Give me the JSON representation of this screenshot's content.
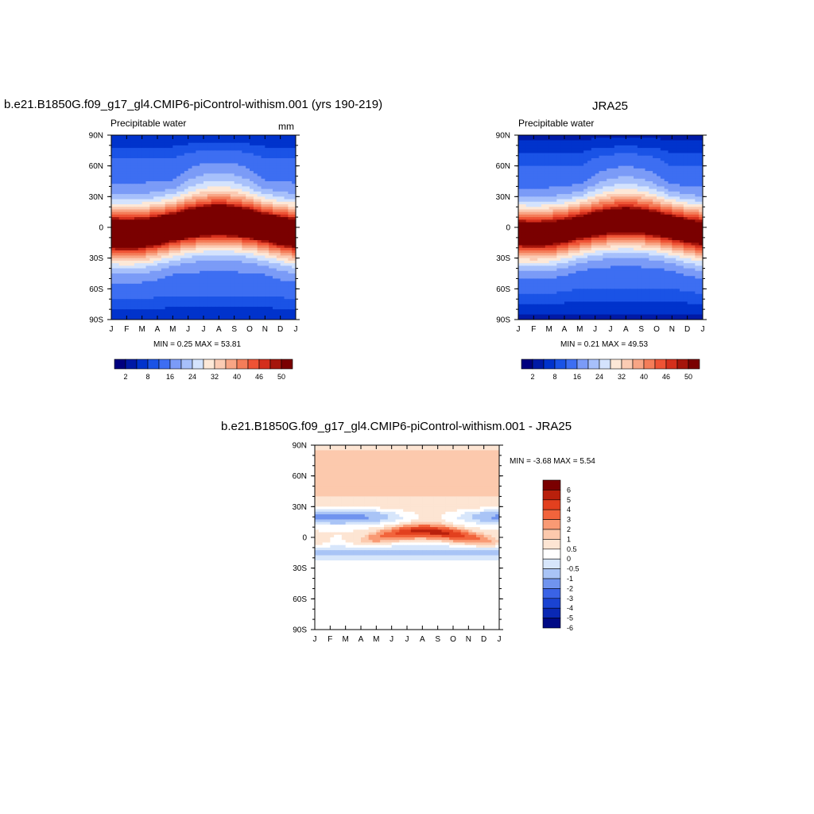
{
  "figure": {
    "panels": [
      {
        "title": "b.e21.B1850G.f09_g17_gl4.CMIP6-piControl-withism.001 (yrs 190-219)",
        "left_label": "Precipitable water",
        "right_label": "mm",
        "stats": "MIN =   0.25 MAX =  53.81"
      },
      {
        "title": "JRA25",
        "left_label": "Precipitable water",
        "right_label": "",
        "stats": "MIN =   0.21 MAX =  49.53"
      },
      {
        "title": "b.e21.B1850G.f09_g17_gl4.CMIP6-piControl-withism.001 - JRA25",
        "left_label": "",
        "right_label": "",
        "stats": "MIN =  -3.68 MAX =   5.54"
      }
    ],
    "month_ticks": [
      "J",
      "F",
      "M",
      "A",
      "M",
      "J",
      "J",
      "A",
      "S",
      "O",
      "N",
      "D",
      "J"
    ],
    "lat_ticks": [
      "90N",
      "60N",
      "30N",
      "0",
      "30S",
      "60S",
      "90S"
    ]
  },
  "chart_data": [
    {
      "type": "heatmap",
      "title": "b.e21.B1850G.f09_g17_gl4.CMIP6-piControl-withism.001 (yrs 190-219)",
      "subtitle": "Precipitable water",
      "units": "mm",
      "x": "month (Jan to Jan)",
      "y": "latitude",
      "ylim": [
        -90,
        90
      ],
      "min": 0.25,
      "max": 53.81,
      "colorbar_levels": [
        2,
        4,
        6,
        8,
        12,
        16,
        20,
        24,
        28,
        32,
        36,
        40,
        44,
        46,
        48,
        50
      ],
      "colorbar_labels": [
        "2",
        "8",
        "16",
        "24",
        "32",
        "40",
        "46",
        "50"
      ],
      "colors": [
        "#00007f",
        "#001aa6",
        "#0033cc",
        "#1a53e6",
        "#3d6ef2",
        "#7b9bf7",
        "#a7c0fb",
        "#d4e3fd",
        "#fde8d7",
        "#fbcbb3",
        "#f8a585",
        "#f47d59",
        "#ee5335",
        "#d42f1c",
        "#a5150b",
        "#7a0000"
      ]
    },
    {
      "type": "heatmap",
      "title": "JRA25",
      "subtitle": "Precipitable water",
      "x": "month (Jan to Jan)",
      "y": "latitude",
      "ylim": [
        -90,
        90
      ],
      "min": 0.21,
      "max": 49.53,
      "colorbar_levels": [
        2,
        4,
        6,
        8,
        12,
        16,
        20,
        24,
        28,
        32,
        36,
        40,
        44,
        46,
        48,
        50
      ],
      "colorbar_labels": [
        "2",
        "8",
        "16",
        "24",
        "32",
        "40",
        "46",
        "50"
      ]
    },
    {
      "type": "heatmap",
      "title": "b.e21.B1850G.f09_g17_gl4.CMIP6-piControl-withism.001 - JRA25",
      "x": "month (Jan to Jan)",
      "y": "latitude",
      "ylim": [
        -90,
        90
      ],
      "min": -3.68,
      "max": 5.54,
      "colorbar_labels": [
        "6",
        "5",
        "4",
        "3",
        "2",
        "1",
        "0.5",
        "0",
        "-0.5",
        "-1",
        "-2",
        "-3",
        "-4",
        "-5",
        "-6"
      ],
      "colors": [
        "#7a0000",
        "#b8200c",
        "#e2401f",
        "#f2643c",
        "#f99a74",
        "#fcc9ad",
        "#fde5d3",
        "#ffffff",
        "#d7e6fb",
        "#a9c4f6",
        "#7094ef",
        "#3a63e6",
        "#1a43d2",
        "#0a28b4",
        "#000a85"
      ]
    }
  ]
}
